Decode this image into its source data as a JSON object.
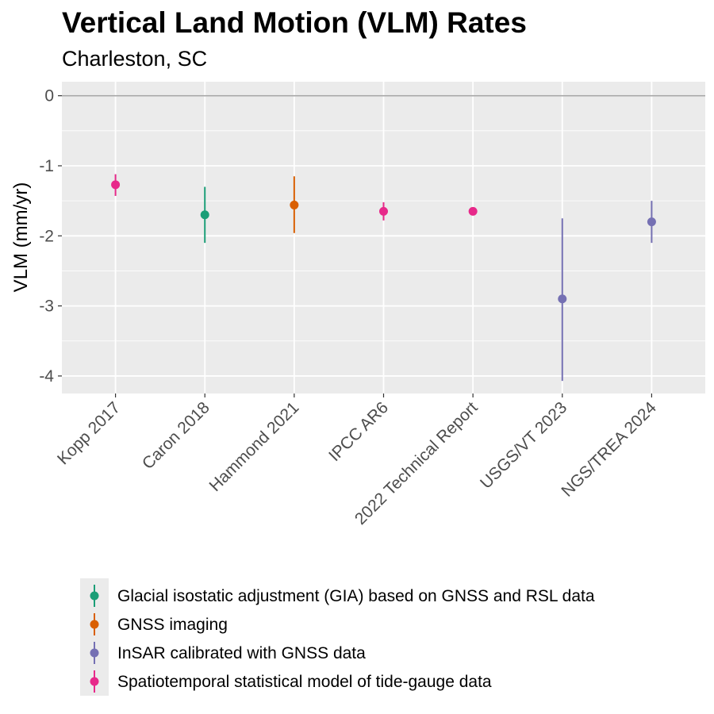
{
  "chart_data": {
    "type": "scatter",
    "title": "Vertical Land Motion (VLM) Rates",
    "subtitle": "Charleston, SC",
    "xlabel": "",
    "ylabel": "VLM (mm/yr)",
    "ylim": [
      -4.25,
      0.2
    ],
    "yticks": [
      0,
      -1,
      -2,
      -3,
      -4
    ],
    "grid": true,
    "reference_line": 0,
    "categories": [
      "Kopp 2017",
      "Caron 2018",
      "Hammond 2021",
      "IPCC AR6",
      "2022 Technical Report",
      "USGS/VT 2023",
      "NGS/TREA 2024"
    ],
    "points": [
      {
        "category": "Kopp 2017",
        "value": -1.27,
        "lower": -1.43,
        "upper": -1.12,
        "method": 3
      },
      {
        "category": "Caron 2018",
        "value": -1.7,
        "lower": -2.1,
        "upper": -1.3,
        "method": 0
      },
      {
        "category": "Hammond 2021",
        "value": -1.56,
        "lower": -1.96,
        "upper": -1.15,
        "method": 1
      },
      {
        "category": "IPCC AR6",
        "value": -1.65,
        "lower": -1.78,
        "upper": -1.52,
        "method": 3
      },
      {
        "category": "2022 Technical Report",
        "value": -1.65,
        "lower": -1.65,
        "upper": -1.65,
        "method": 3
      },
      {
        "category": "USGS/VT 2023",
        "value": -2.9,
        "lower": -4.07,
        "upper": -1.75,
        "method": 2
      },
      {
        "category": "NGS/TREA 2024",
        "value": -1.8,
        "lower": -2.1,
        "upper": -1.5,
        "method": 2
      }
    ],
    "legend": {
      "position": "bottom",
      "entries": [
        {
          "label": "Glacial isostatic adjustment (GIA) based on GNSS and RSL data",
          "color": "#1b9e77"
        },
        {
          "label": "GNSS imaging",
          "color": "#d95f02"
        },
        {
          "label": "InSAR calibrated with GNSS data",
          "color": "#7570b3"
        },
        {
          "label": "Spatiotemporal statistical model of tide-gauge data",
          "color": "#e7298a"
        }
      ]
    },
    "colors": {
      "panel_background": "#ebebeb",
      "grid": "#ffffff",
      "reference_line": "#a6a6a6"
    }
  }
}
